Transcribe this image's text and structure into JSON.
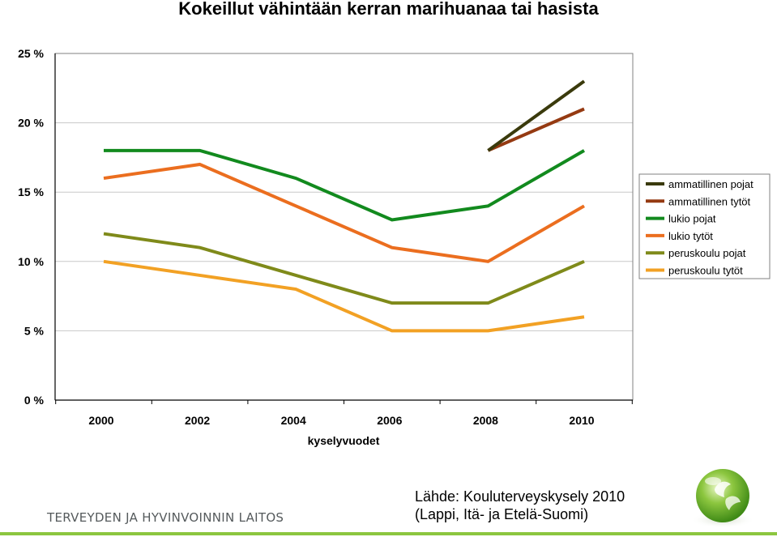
{
  "title": "Kokeillut vähintään kerran marihuanaa tai hasista",
  "chart_data": {
    "type": "line",
    "title": "Kokeillut vähintään kerran marihuanaa tai hasista",
    "xlabel": "kyselyvuodet",
    "ylabel": "",
    "x": [
      2000,
      2002,
      2004,
      2006,
      2008,
      2010
    ],
    "x_tick_labels": [
      "2000",
      "2002",
      "2004",
      "2006",
      "2008",
      "2010"
    ],
    "ylim": [
      0,
      25
    ],
    "y_ticks": [
      0,
      5,
      10,
      15,
      20,
      25
    ],
    "y_tick_labels": [
      "0 %",
      "5 %",
      "10 %",
      "15 %",
      "20 %",
      "25 %"
    ],
    "grid": true,
    "legend_position": "right",
    "series": [
      {
        "name": "ammatillinen pojat",
        "color": "#3a3a0c",
        "values": [
          null,
          null,
          null,
          null,
          18,
          23
        ]
      },
      {
        "name": "ammatillinen tytöt",
        "color": "#953a12",
        "values": [
          null,
          null,
          null,
          null,
          18,
          21
        ]
      },
      {
        "name": "lukio pojat",
        "color": "#128a1e",
        "values": [
          18,
          18,
          16,
          13,
          14,
          18
        ]
      },
      {
        "name": "lukio tytöt",
        "color": "#eb6e1f",
        "values": [
          16,
          17,
          14,
          11,
          10,
          14
        ]
      },
      {
        "name": "peruskoulu pojat",
        "color": "#7f8a1a",
        "values": [
          12,
          11,
          9,
          7,
          7,
          10
        ]
      },
      {
        "name": "peruskoulu tytöt",
        "color": "#f2a124",
        "values": [
          10,
          9,
          8,
          5,
          5,
          6
        ]
      }
    ]
  },
  "footer": {
    "organization": "TERVEYDEN JA HYVINVOINNIN LAITOS",
    "source_line1": "Lähde: Kouluterveyskysely 2010",
    "source_line2": "(Lappi, Itä- ja Etelä-Suomi)",
    "accent_color": "#8cc63f"
  },
  "logo": {
    "icon": "green-globe-logo-icon"
  }
}
